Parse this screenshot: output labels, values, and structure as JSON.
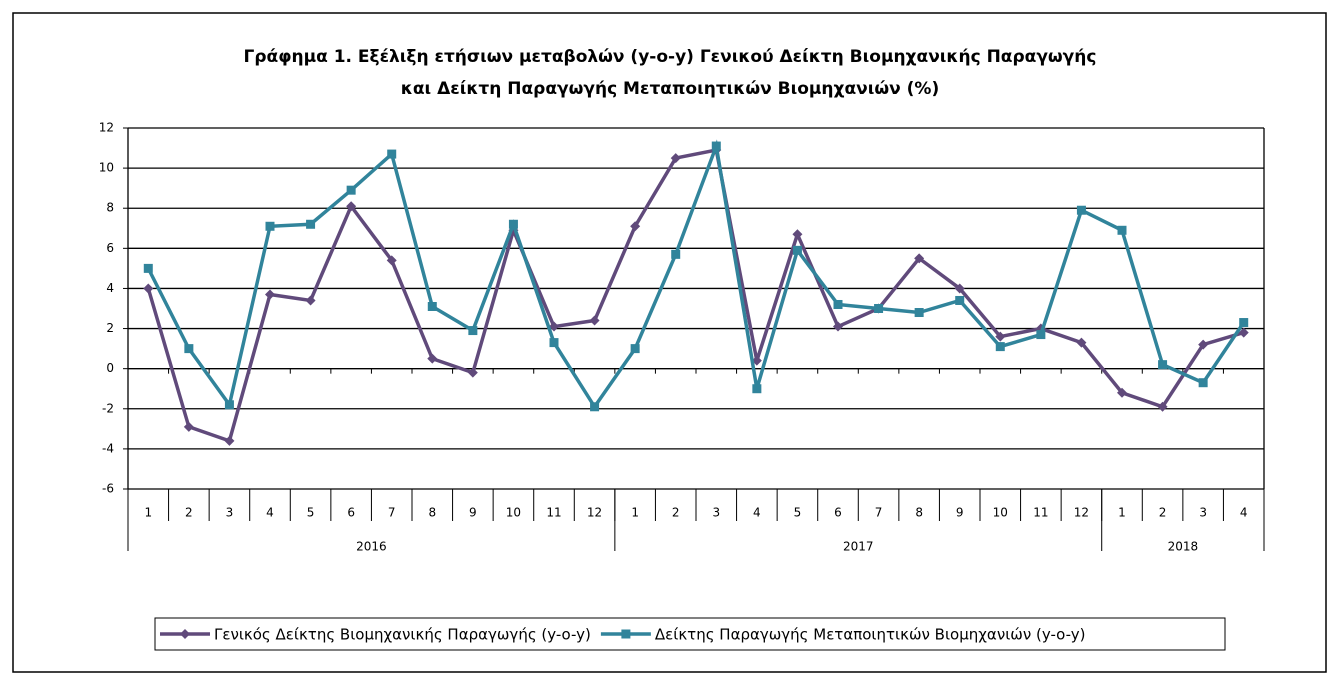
{
  "chart_data": {
    "type": "line",
    "title": [
      "Γράφημα 1. Εξέλιξη ετήσιων μεταβολών (y-o-y) Γενικού Δείκτη Βιομηχανικής Παραγωγής",
      "και Δείκτη Παραγωγής Μεταποιητικών Βιομηχανιών (%)"
    ],
    "categories": [
      "1",
      "2",
      "3",
      "4",
      "5",
      "6",
      "7",
      "8",
      "9",
      "10",
      "11",
      "12",
      "1",
      "2",
      "3",
      "4",
      "5",
      "6",
      "7",
      "8",
      "9",
      "10",
      "11",
      "12",
      "1",
      "2",
      "3",
      "4"
    ],
    "groups": [
      {
        "name": "2016",
        "size": 12
      },
      {
        "name": "2017",
        "size": 12
      },
      {
        "name": "2018",
        "size": 4
      }
    ],
    "series": [
      {
        "name": "Γενικός Δείκτης Βιομηχανικής Παραγωγής (y-o-y)",
        "color": "#604a7b",
        "marker": "diamond",
        "values": [
          4.0,
          -2.9,
          -3.6,
          3.7,
          3.4,
          8.1,
          5.4,
          0.5,
          -0.2,
          6.9,
          2.1,
          2.4,
          7.1,
          10.5,
          10.9,
          0.4,
          6.7,
          2.1,
          3.0,
          5.5,
          4.0,
          1.6,
          2.0,
          1.3,
          -1.2,
          -1.9,
          1.2,
          1.8
        ]
      },
      {
        "name": "Δείκτης Παραγωγής Μεταποιητικών Βιομηχανιών (y-o-y)",
        "color": "#31849b",
        "marker": "square",
        "values": [
          5.0,
          1.0,
          -1.8,
          7.1,
          7.2,
          8.9,
          10.7,
          3.1,
          1.9,
          7.2,
          1.3,
          -1.9,
          1.0,
          5.7,
          11.1,
          -1.0,
          5.9,
          3.2,
          3.0,
          2.8,
          3.4,
          1.1,
          1.7,
          7.9,
          6.9,
          0.2,
          -0.7,
          2.3
        ]
      }
    ],
    "ylim": [
      -6,
      12
    ],
    "yticks": [
      -6,
      -4,
      -2,
      0,
      2,
      4,
      6,
      8,
      10,
      12
    ],
    "grid": true,
    "legend": "bottom"
  }
}
